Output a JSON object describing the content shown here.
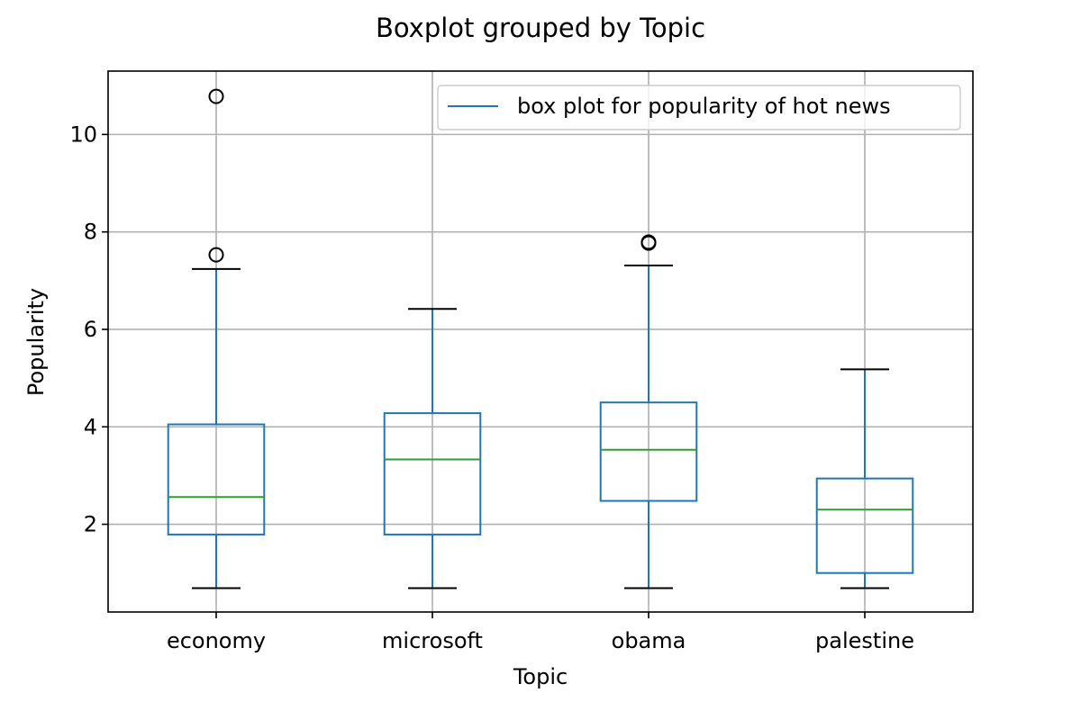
{
  "chart_data": {
    "type": "box",
    "title": "Boxplot grouped by Topic",
    "xlabel": "Topic",
    "ylabel": "Popularity",
    "ylim": [
      0.2,
      11.3
    ],
    "yticks": [
      2,
      4,
      6,
      8,
      10
    ],
    "grid": true,
    "legend": {
      "placement": "top-right",
      "entries": [
        "box plot for popularity of hot news"
      ]
    },
    "categories": [
      "economy",
      "microsoft",
      "obama",
      "palestine"
    ],
    "boxes": [
      {
        "category": "economy",
        "whisker_low": 0.69,
        "q1": 1.79,
        "median": 2.56,
        "q3": 4.05,
        "whisker_high": 7.24,
        "outliers": [
          7.53,
          10.78
        ]
      },
      {
        "category": "microsoft",
        "whisker_low": 0.69,
        "q1": 1.79,
        "median": 3.33,
        "q3": 4.28,
        "whisker_high": 6.42,
        "outliers": []
      },
      {
        "category": "obama",
        "whisker_low": 0.69,
        "q1": 2.48,
        "median": 3.53,
        "q3": 4.5,
        "whisker_high": 7.31,
        "outliers": [
          7.77,
          7.79
        ]
      },
      {
        "category": "palestine",
        "whisker_low": 0.69,
        "q1": 1.0,
        "median": 2.3,
        "q3": 2.94,
        "whisker_high": 5.18,
        "outliers": []
      }
    ],
    "colors": {
      "box": "#1f77b4",
      "median": "#2ca02c",
      "cap": "#000000",
      "grid": "#b0b0b0",
      "outlier": "#000000"
    }
  }
}
